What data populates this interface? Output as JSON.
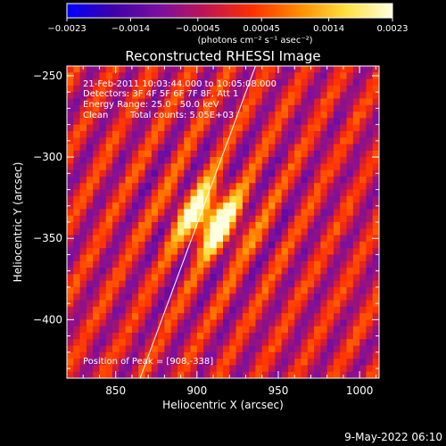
{
  "chart_data": {
    "type": "heatmap",
    "title": "Reconstructed RHESSI Image",
    "xlabel": "Heliocentric X (arcsec)",
    "ylabel": "Heliocentric Y (arcsec)",
    "xlim": [
      820,
      1012
    ],
    "ylim": [
      -436,
      -244
    ],
    "x_ticks": [
      850,
      900,
      950,
      1000
    ],
    "y_ticks": [
      -250,
      -300,
      -350,
      -400
    ],
    "x_tick_labels": [
      "850",
      "900",
      "950",
      "1000"
    ],
    "y_tick_labels": [
      "−250",
      "−300",
      "−350",
      "−400"
    ],
    "colorbar": {
      "range": [
        -0.0023,
        0.0023
      ],
      "tick_values": [
        -0.0023,
        -0.0014,
        -0.00045,
        0.00045,
        0.0014,
        0.0023
      ],
      "tick_labels": [
        "−0.0023",
        "−0.0014",
        "−0.00045",
        "0.00045",
        "0.0014",
        "0.0023"
      ],
      "unit_label": "(photons cm⁻² s⁻¹ asec⁻²)"
    },
    "peak": {
      "x": 908,
      "y": -338
    },
    "limb_line": [
      [
        865,
        -436
      ],
      [
        936,
        -244
      ]
    ],
    "annotations": {
      "time_range": "21-Feb-2011 10:03:44.000 to 10:05:08.000",
      "detectors": "Detectors: 3F 4F 5F 6F 7F 8F, Att 1",
      "energy": "Energy Range: 25.0 - 50.0 keV",
      "method": "Clean",
      "counts": "Total counts: 5.05E+03",
      "peak_text": "Position of Peak = [908,-338]"
    },
    "colors": {
      "background": "#000000",
      "text": "#ffffff",
      "colormap": [
        "#0000ff",
        "#3f00a8",
        "#7a10a0",
        "#c01550",
        "#ff3000",
        "#ff8c00",
        "#ffe040",
        "#ffffe0"
      ]
    }
  },
  "footer": {
    "date": "9-May-2022 06:10"
  }
}
